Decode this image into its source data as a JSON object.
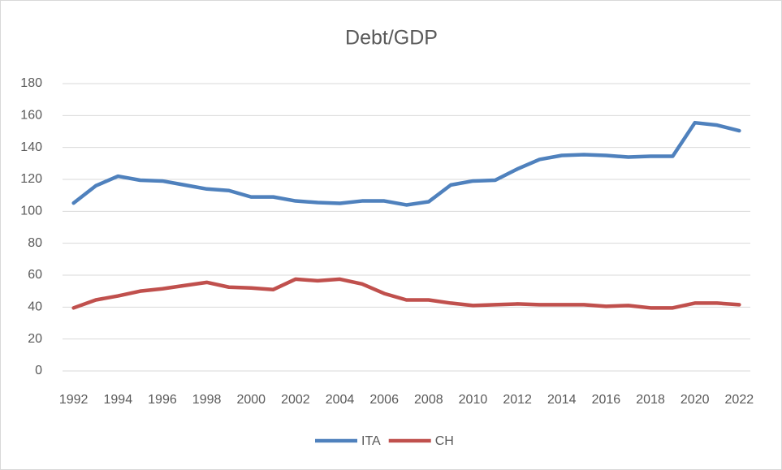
{
  "chart_data": {
    "type": "line",
    "title": "Debt/GDP",
    "x": [
      1992,
      1993,
      1994,
      1995,
      1996,
      1997,
      1998,
      1999,
      2000,
      2001,
      2002,
      2003,
      2004,
      2005,
      2006,
      2007,
      2008,
      2009,
      2010,
      2011,
      2012,
      2013,
      2014,
      2015,
      2016,
      2017,
      2018,
      2019,
      2020,
      2021,
      2022
    ],
    "xlim": [
      1991.5,
      2022.5
    ],
    "xticks": [
      1992,
      1994,
      1996,
      1998,
      2000,
      2002,
      2004,
      2006,
      2008,
      2010,
      2012,
      2014,
      2016,
      2018,
      2020,
      2022
    ],
    "ylim": [
      0,
      180
    ],
    "yticks": [
      0,
      20,
      40,
      60,
      80,
      100,
      120,
      140,
      160,
      180
    ],
    "grid": true,
    "legend": "bottom",
    "series": [
      {
        "name": "ITA",
        "color": "#4f81bd",
        "values": [
          105.2,
          116,
          122,
          119.5,
          119,
          116.5,
          114,
          113,
          109,
          109,
          106.5,
          105.5,
          105,
          106.5,
          106.5,
          104,
          106,
          116.5,
          119,
          119.5,
          126.5,
          132.5,
          135,
          135.5,
          135,
          134,
          134.5,
          134.5,
          155.5,
          154,
          150.5
        ]
      },
      {
        "name": "CH",
        "color": "#c0504d",
        "values": [
          39.5,
          44.5,
          47,
          50,
          51.5,
          53.5,
          55.5,
          52.5,
          52,
          51,
          57.5,
          56.5,
          57.5,
          54.5,
          48.5,
          44.5,
          44.5,
          42.5,
          41,
          41.5,
          42,
          41.5,
          41.5,
          41.5,
          40.5,
          41,
          39.5,
          39.5,
          42.5,
          42.5,
          41.5
        ]
      }
    ]
  }
}
